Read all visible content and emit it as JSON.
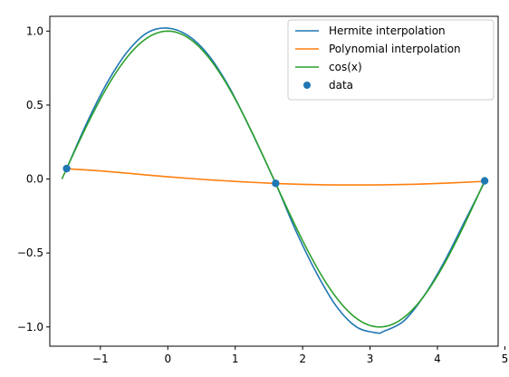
{
  "chart_data": {
    "type": "line",
    "title": "",
    "xlabel": "",
    "ylabel": "",
    "xlim": [
      -1.75,
      4.9
    ],
    "ylim": [
      -1.13,
      1.1
    ],
    "x_ticks": [
      -1,
      0,
      1,
      2,
      3,
      4,
      5
    ],
    "x_tick_labels": [
      "−1",
      "0",
      "1",
      "2",
      "3",
      "4",
      "5"
    ],
    "y_ticks": [
      -1.0,
      -0.5,
      0.0,
      0.5,
      1.0
    ],
    "y_tick_labels": [
      "−1.0",
      "−0.5",
      "0.0",
      "0.5",
      "1.0"
    ],
    "grid": false,
    "legend_position": "top-right",
    "series": [
      {
        "name": "Hermite interpolation",
        "color": "#1f77b4",
        "x": [
          -1.5,
          -1.2,
          -0.9,
          -0.6,
          -0.3,
          0.0,
          0.3,
          0.6,
          0.9,
          1.2,
          1.6,
          1.9,
          2.2,
          2.5,
          2.8,
          3.1,
          3.2,
          3.5,
          3.8,
          4.1,
          4.4,
          4.7
        ],
        "y": [
          0.07,
          0.38,
          0.65,
          0.86,
          0.99,
          1.02,
          0.97,
          0.84,
          0.63,
          0.36,
          -0.03,
          -0.35,
          -0.63,
          -0.86,
          -1.0,
          -1.04,
          -1.03,
          -0.96,
          -0.79,
          -0.56,
          -0.29,
          -0.02
        ]
      },
      {
        "name": "Polynomial interpolation",
        "color": "#ff7f0e",
        "x": [
          -1.5,
          -1.0,
          -0.5,
          0.0,
          0.5,
          1.0,
          1.6,
          2.0,
          2.5,
          3.0,
          3.5,
          4.0,
          4.5,
          4.7
        ],
        "y": [
          0.07,
          0.055,
          0.035,
          0.015,
          -0.002,
          -0.016,
          -0.03,
          -0.036,
          -0.04,
          -0.04,
          -0.037,
          -0.03,
          -0.02,
          -0.015
        ]
      },
      {
        "name": "cos(x)",
        "color": "#2ca02c",
        "function": "cos",
        "x_range": [
          -1.5708,
          4.7124
        ]
      },
      {
        "name": "data",
        "color": "#1f77b4",
        "type": "scatter",
        "x": [
          -1.5,
          1.6,
          4.7
        ],
        "y": [
          0.0707,
          -0.0292,
          -0.0124
        ]
      }
    ]
  }
}
